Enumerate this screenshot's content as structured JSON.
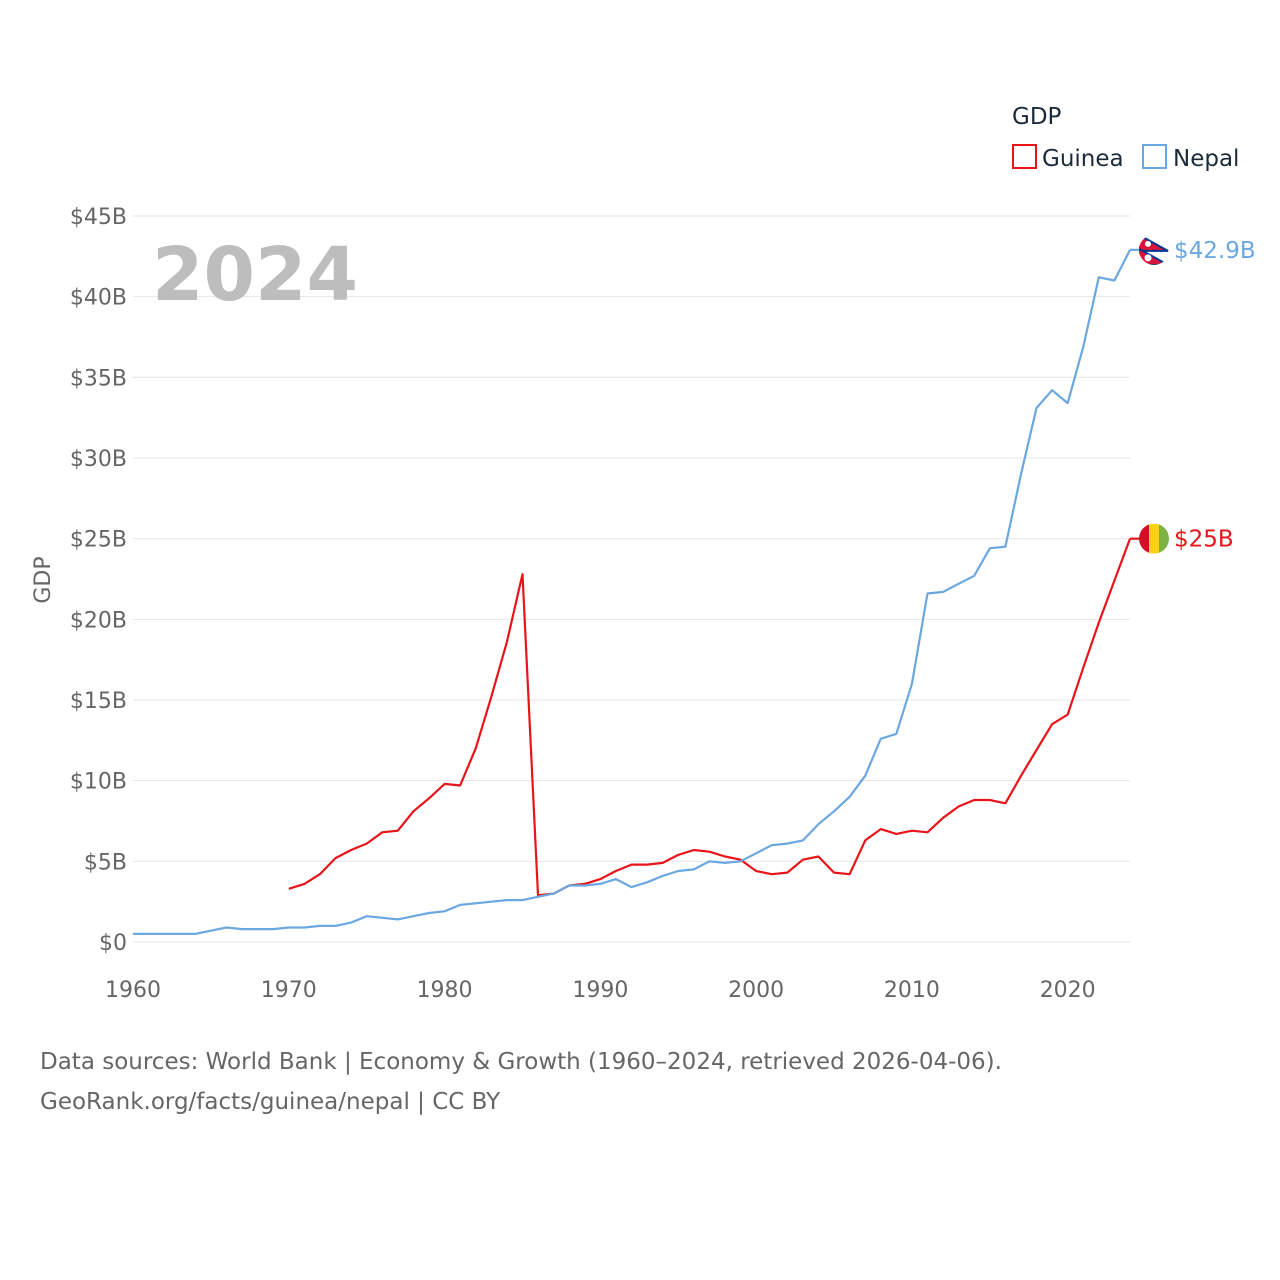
{
  "chart_data": {
    "type": "line",
    "year_label": "2024",
    "ylabel": "GDP",
    "legend": {
      "title": "GDP",
      "position": "top-right"
    },
    "ylim": [
      0,
      45
    ],
    "y_ticks": [
      {
        "value": 0,
        "label": "$0"
      },
      {
        "value": 5,
        "label": "$5B"
      },
      {
        "value": 10,
        "label": "$10B"
      },
      {
        "value": 15,
        "label": "$15B"
      },
      {
        "value": 20,
        "label": "$20B"
      },
      {
        "value": 25,
        "label": "$25B"
      },
      {
        "value": 30,
        "label": "$30B"
      },
      {
        "value": 35,
        "label": "$35B"
      },
      {
        "value": 40,
        "label": "$40B"
      },
      {
        "value": 45,
        "label": "$45B"
      }
    ],
    "xlim": [
      1960,
      2024
    ],
    "x_ticks": [
      1960,
      1970,
      1980,
      1990,
      2000,
      2010,
      2020
    ],
    "series": [
      {
        "name": "Guinea",
        "color": "#e8141a",
        "end_label": "$25B",
        "flag": "guinea-flag",
        "points": [
          [
            1970,
            3.3
          ],
          [
            1971,
            3.6
          ],
          [
            1972,
            4.2
          ],
          [
            1973,
            5.2
          ],
          [
            1974,
            5.7
          ],
          [
            1975,
            6.1
          ],
          [
            1976,
            6.8
          ],
          [
            1977,
            6.9
          ],
          [
            1978,
            8.1
          ],
          [
            1979,
            8.9
          ],
          [
            1980,
            9.8
          ],
          [
            1981,
            9.7
          ],
          [
            1982,
            12.0
          ],
          [
            1983,
            15.2
          ],
          [
            1984,
            18.6
          ],
          [
            1985,
            22.8
          ],
          [
            1986,
            2.9
          ],
          [
            1987,
            3.0
          ],
          [
            1988,
            3.5
          ],
          [
            1989,
            3.6
          ],
          [
            1990,
            3.9
          ],
          [
            1991,
            4.4
          ],
          [
            1992,
            4.8
          ],
          [
            1993,
            4.8
          ],
          [
            1994,
            4.9
          ],
          [
            1995,
            5.4
          ],
          [
            1996,
            5.7
          ],
          [
            1997,
            5.6
          ],
          [
            1998,
            5.3
          ],
          [
            1999,
            5.1
          ],
          [
            2000,
            4.4
          ],
          [
            2001,
            4.2
          ],
          [
            2002,
            4.3
          ],
          [
            2003,
            5.1
          ],
          [
            2004,
            5.3
          ],
          [
            2005,
            4.3
          ],
          [
            2006,
            4.2
          ],
          [
            2007,
            6.3
          ],
          [
            2008,
            7.0
          ],
          [
            2009,
            6.7
          ],
          [
            2010,
            6.9
          ],
          [
            2011,
            6.8
          ],
          [
            2012,
            7.7
          ],
          [
            2013,
            8.4
          ],
          [
            2014,
            8.8
          ],
          [
            2015,
            8.8
          ],
          [
            2016,
            8.6
          ],
          [
            2017,
            10.3
          ],
          [
            2018,
            11.9
          ],
          [
            2019,
            13.5
          ],
          [
            2020,
            14.1
          ],
          [
            2021,
            17.0
          ],
          [
            2022,
            19.8
          ],
          [
            2023,
            22.4
          ],
          [
            2024,
            25.0
          ]
        ]
      },
      {
        "name": "Nepal",
        "color": "#6ba7e1",
        "end_label": "$42.9B",
        "flag": "nepal-flag",
        "points": [
          [
            1960,
            0.5
          ],
          [
            1961,
            0.5
          ],
          [
            1962,
            0.5
          ],
          [
            1963,
            0.5
          ],
          [
            1964,
            0.5
          ],
          [
            1965,
            0.7
          ],
          [
            1966,
            0.9
          ],
          [
            1967,
            0.8
          ],
          [
            1968,
            0.8
          ],
          [
            1969,
            0.8
          ],
          [
            1970,
            0.9
          ],
          [
            1971,
            0.9
          ],
          [
            1972,
            1.0
          ],
          [
            1973,
            1.0
          ],
          [
            1974,
            1.2
          ],
          [
            1975,
            1.6
          ],
          [
            1976,
            1.5
          ],
          [
            1977,
            1.4
          ],
          [
            1978,
            1.6
          ],
          [
            1979,
            1.8
          ],
          [
            1980,
            1.9
          ],
          [
            1981,
            2.3
          ],
          [
            1982,
            2.4
          ],
          [
            1983,
            2.5
          ],
          [
            1984,
            2.6
          ],
          [
            1985,
            2.6
          ],
          [
            1986,
            2.8
          ],
          [
            1987,
            3.0
          ],
          [
            1988,
            3.5
          ],
          [
            1989,
            3.5
          ],
          [
            1990,
            3.6
          ],
          [
            1991,
            3.9
          ],
          [
            1992,
            3.4
          ],
          [
            1993,
            3.7
          ],
          [
            1994,
            4.1
          ],
          [
            1995,
            4.4
          ],
          [
            1996,
            4.5
          ],
          [
            1997,
            5.0
          ],
          [
            1998,
            4.9
          ],
          [
            1999,
            5.0
          ],
          [
            2000,
            5.5
          ],
          [
            2001,
            6.0
          ],
          [
            2002,
            6.1
          ],
          [
            2003,
            6.3
          ],
          [
            2004,
            7.3
          ],
          [
            2005,
            8.1
          ],
          [
            2006,
            9.0
          ],
          [
            2007,
            10.3
          ],
          [
            2008,
            12.6
          ],
          [
            2009,
            12.9
          ],
          [
            2010,
            16.0
          ],
          [
            2011,
            21.6
          ],
          [
            2012,
            21.7
          ],
          [
            2013,
            22.2
          ],
          [
            2014,
            22.7
          ],
          [
            2015,
            24.4
          ],
          [
            2016,
            24.5
          ],
          [
            2017,
            29.0
          ],
          [
            2018,
            33.1
          ],
          [
            2019,
            34.2
          ],
          [
            2020,
            33.4
          ],
          [
            2021,
            36.9
          ],
          [
            2022,
            41.2
          ],
          [
            2023,
            41.0
          ],
          [
            2024,
            42.9
          ]
        ]
      }
    ]
  },
  "footer": {
    "line1": "Data sources: World Bank | Economy & Growth (1960–2024, retrieved 2026-04-06).",
    "line2": "GeoRank.org/facts/guinea/nepal | CC BY"
  }
}
